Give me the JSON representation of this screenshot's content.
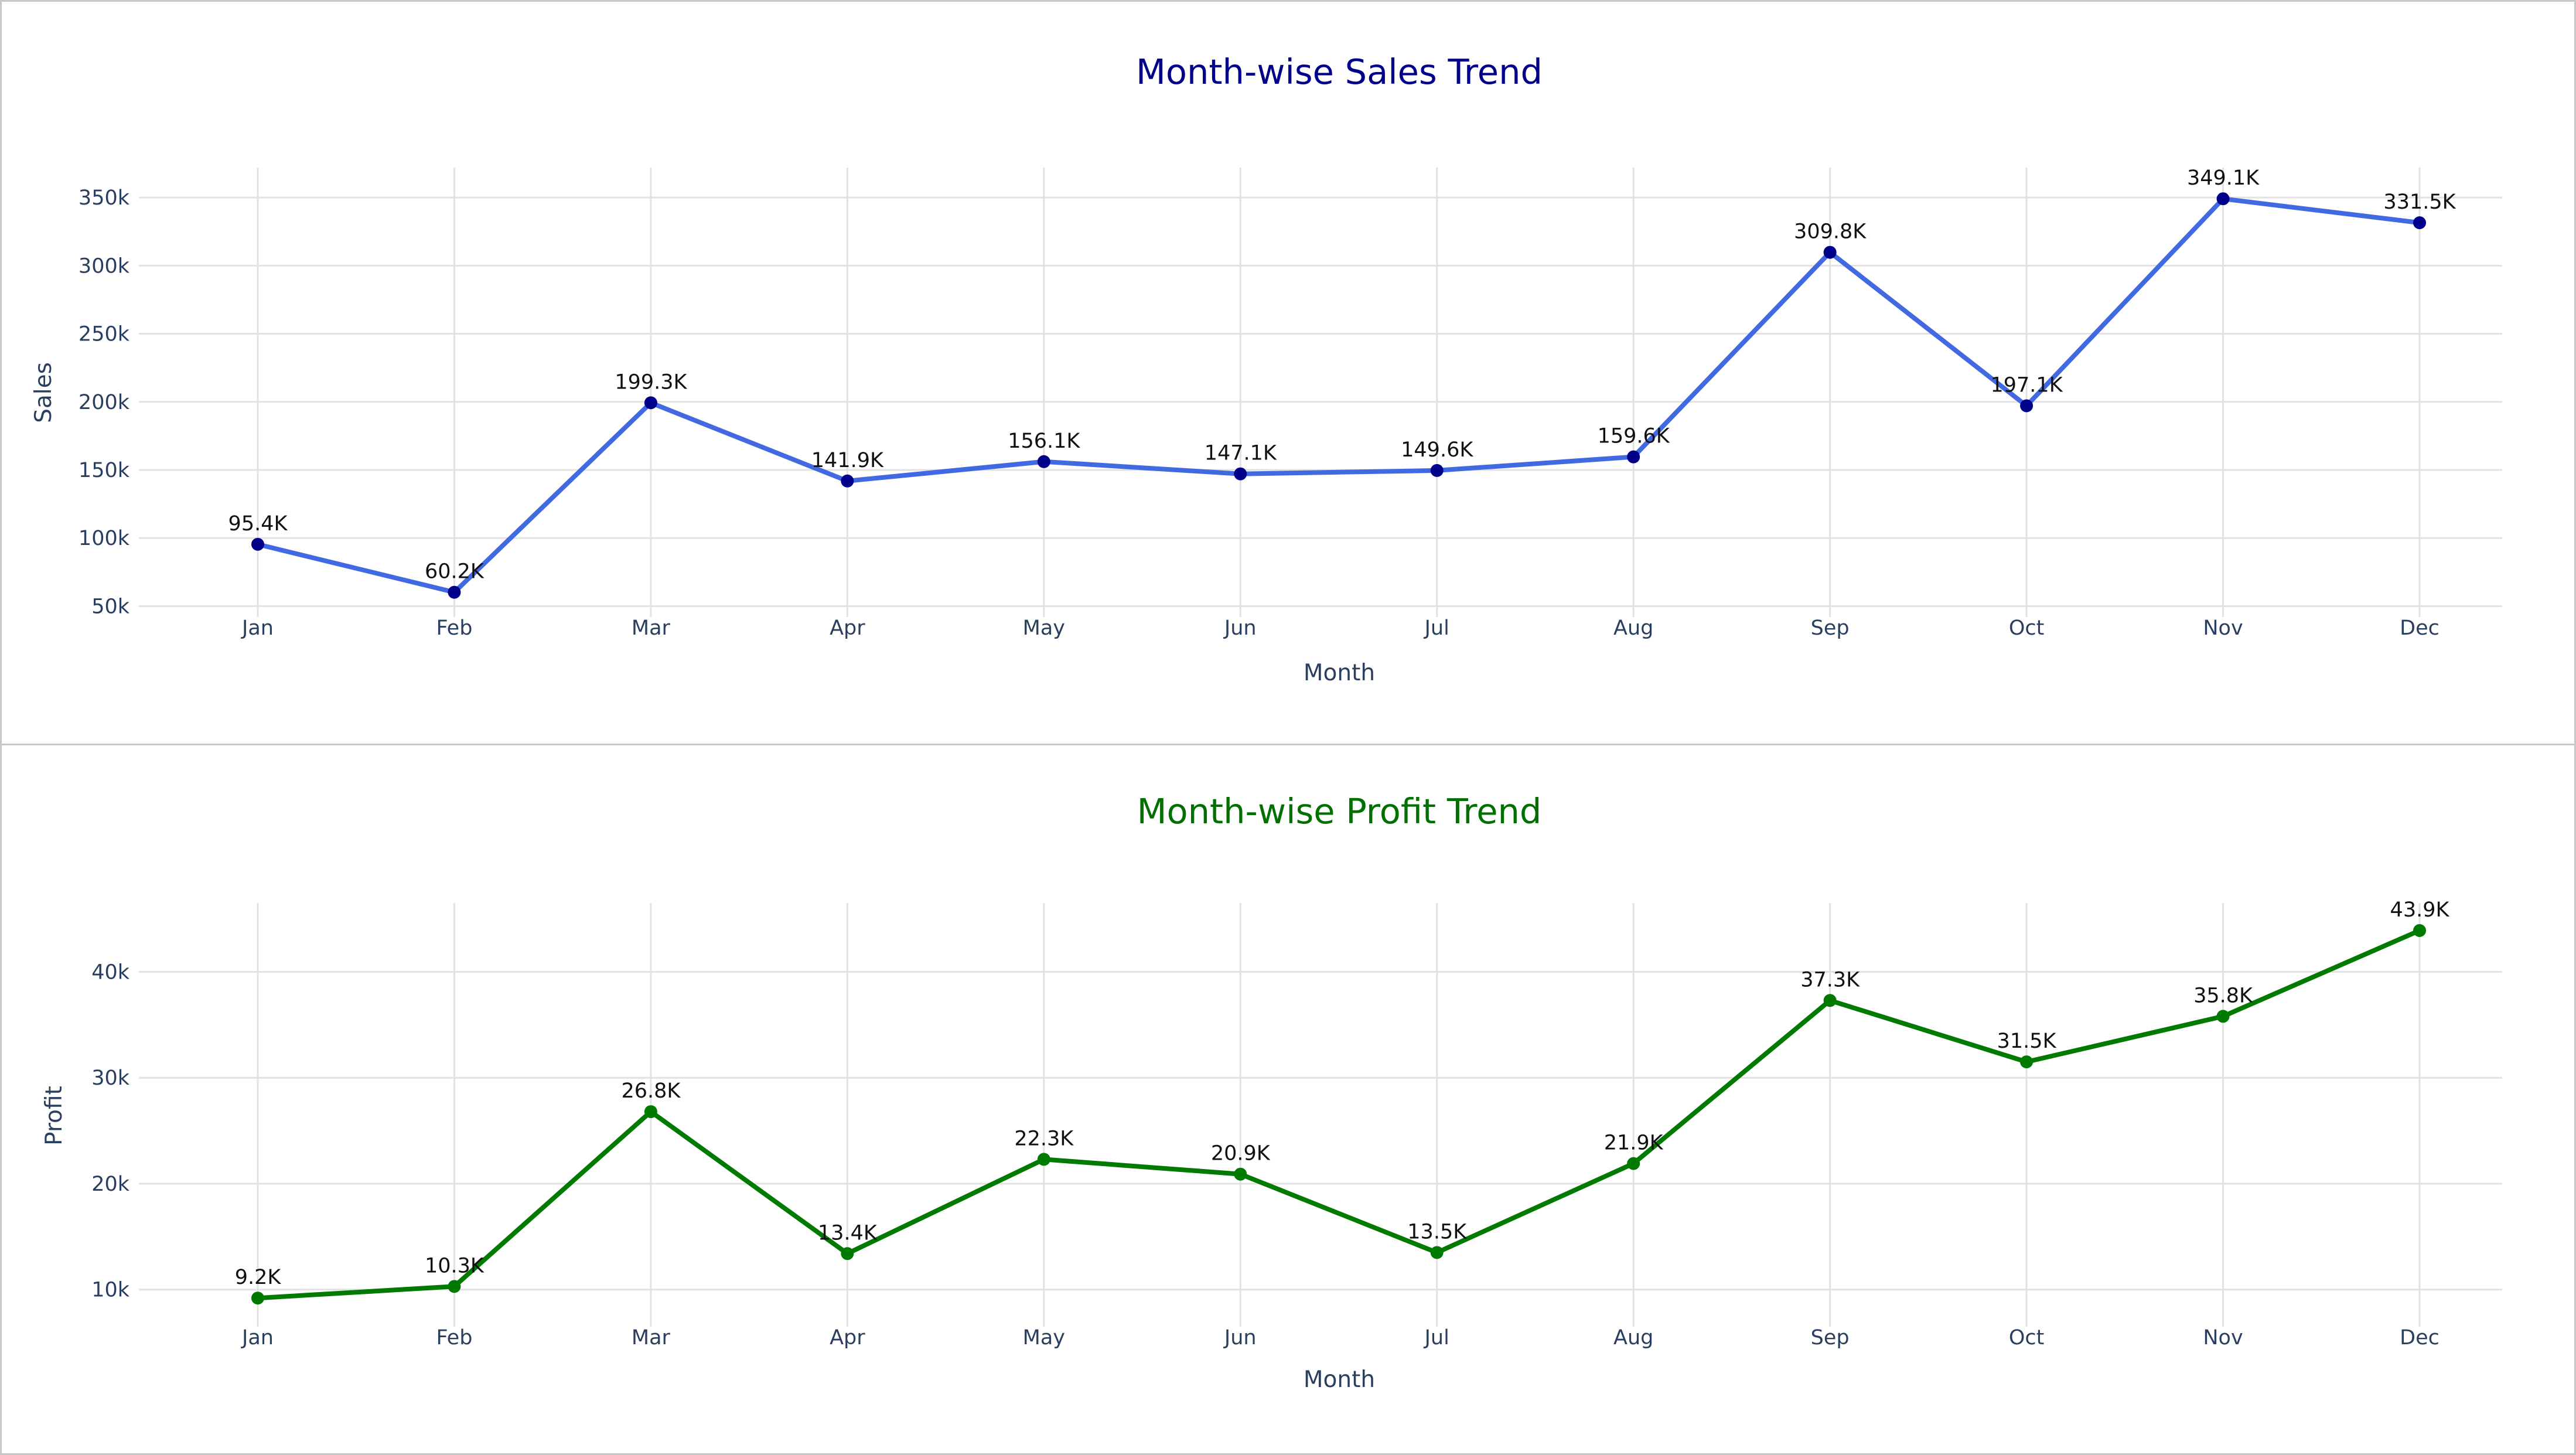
{
  "chart_data": [
    {
      "type": "line",
      "title": "Month-wise Sales Trend",
      "xlabel": "Month",
      "ylabel": "Sales",
      "categories": [
        "Jan",
        "Feb",
        "Mar",
        "Apr",
        "May",
        "Jun",
        "Jul",
        "Aug",
        "Sep",
        "Oct",
        "Nov",
        "Dec"
      ],
      "values": [
        95400,
        60200,
        199300,
        141900,
        156100,
        147100,
        149600,
        159600,
        309800,
        197100,
        349100,
        331500
      ],
      "data_labels": [
        "95.4K",
        "60.2K",
        "199.3K",
        "141.9K",
        "156.1K",
        "147.1K",
        "149.6K",
        "159.6K",
        "309.8K",
        "197.1K",
        "349.1K",
        "331.5K"
      ],
      "yticks": [
        50000,
        100000,
        150000,
        200000,
        250000,
        300000,
        350000
      ],
      "ytick_labels": [
        "50k",
        "100k",
        "150k",
        "200k",
        "250k",
        "300k",
        "350k"
      ],
      "ylim": [
        42000,
        372000
      ],
      "grid": true,
      "title_color": "#00008b",
      "line_color": "#4169e1",
      "marker_color": "#00008b"
    },
    {
      "type": "line",
      "title": "Month-wise Profit Trend",
      "xlabel": "Month",
      "ylabel": "Profit",
      "categories": [
        "Jan",
        "Feb",
        "Mar",
        "Apr",
        "May",
        "Jun",
        "Jul",
        "Aug",
        "Sep",
        "Oct",
        "Nov",
        "Dec"
      ],
      "values": [
        9200,
        10300,
        26800,
        13400,
        22300,
        20900,
        13500,
        21900,
        37300,
        31500,
        35800,
        43900
      ],
      "data_labels": [
        "9.2K",
        "10.3K",
        "26.8K",
        "13.4K",
        "22.3K",
        "20.9K",
        "13.5K",
        "21.9K",
        "37.3K",
        "31.5K",
        "35.8K",
        "43.9K"
      ],
      "yticks": [
        10000,
        20000,
        30000,
        40000
      ],
      "ytick_labels": [
        "10k",
        "20k",
        "30k",
        "40k"
      ],
      "ylim": [
        6500,
        46500
      ],
      "grid": true,
      "title_color": "#007000",
      "line_color": "#007a00",
      "marker_color": "#007a00"
    }
  ]
}
